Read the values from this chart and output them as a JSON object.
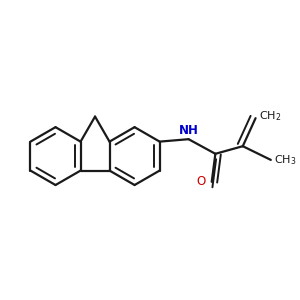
{
  "bg_color": "#ffffff",
  "bond_color": "#1a1a1a",
  "bond_width": 1.6,
  "figsize": [
    3.0,
    3.0
  ],
  "dpi": 100,
  "NH_color": "#0000cc",
  "O_color": "#cc0000",
  "text_color": "#1a1a1a"
}
